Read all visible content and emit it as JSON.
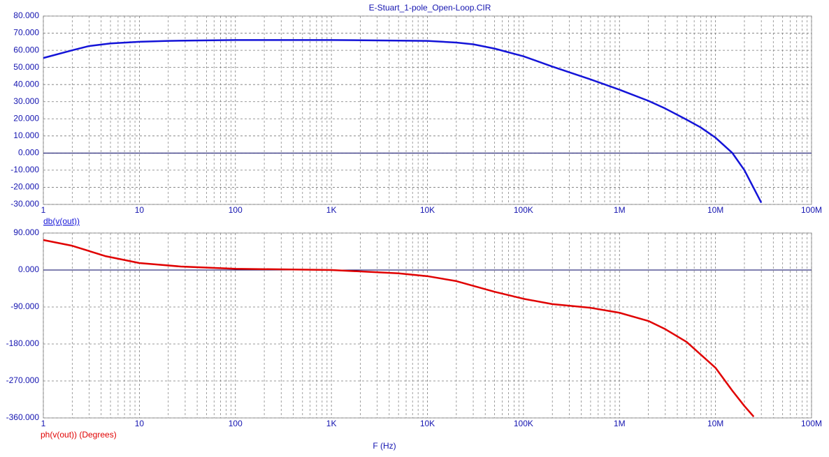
{
  "chart_data": [
    {
      "type": "line",
      "title": "E-Stuart_1-pole_Open-Loop.CIR",
      "log_x": true,
      "grid": true,
      "x": [
        1,
        2,
        3,
        5,
        10,
        20,
        100,
        1000,
        10000,
        20000,
        30000,
        50000,
        100000,
        200000,
        500000,
        1000000,
        2000000,
        3000000,
        5000000,
        7000000,
        10000000,
        15000000,
        20000000,
        30000000
      ],
      "xlim": [
        1,
        100000000
      ],
      "xticks": [
        1,
        10,
        100,
        {
          "value": 1000,
          "label": "1K"
        },
        {
          "value": 10000,
          "label": "10K"
        },
        {
          "value": 100000,
          "label": "100K"
        },
        {
          "value": 1000000,
          "label": "1M"
        },
        {
          "value": 10000000,
          "label": "10M"
        },
        {
          "value": 100000000,
          "label": "100M"
        }
      ],
      "ylim": [
        -30,
        80
      ],
      "yticks": [
        {
          "value": 80,
          "label": "80.000"
        },
        {
          "value": 70,
          "label": "70.000"
        },
        {
          "value": 60,
          "label": "60.000"
        },
        {
          "value": 50,
          "label": "50.000"
        },
        {
          "value": 40,
          "label": "40.000"
        },
        {
          "value": 30,
          "label": "30.000"
        },
        {
          "value": 20,
          "label": "20.000"
        },
        {
          "value": 10,
          "label": "10.000"
        },
        {
          "value": 0,
          "label": "0.000"
        },
        {
          "value": -10,
          "label": "-10.000"
        },
        {
          "value": -20,
          "label": "-20.000"
        },
        {
          "value": -30,
          "label": "-30.000"
        }
      ],
      "series": [
        {
          "name": "db(v(out))",
          "color": "#1414d8",
          "values": [
            55.5,
            60,
            62.5,
            64,
            65,
            65.5,
            66,
            66,
            65.5,
            64.5,
            63.5,
            61,
            56.5,
            50.5,
            43,
            37,
            30.5,
            26,
            19.5,
            15,
            9,
            0,
            -10,
            -29
          ]
        }
      ]
    },
    {
      "type": "line",
      "x_label": "F (Hz)",
      "log_x": true,
      "grid": true,
      "x": [
        1,
        2,
        4.4,
        10,
        27,
        100,
        1000,
        5000,
        10000,
        20000,
        50000,
        100000,
        200000,
        500000,
        1000000,
        2000000,
        3000000,
        5000000,
        10000000,
        15000000,
        20000000,
        25000000
      ],
      "xlim": [
        1,
        100000000
      ],
      "xticks": [
        1,
        10,
        100,
        {
          "value": 1000,
          "label": "1K"
        },
        {
          "value": 10000,
          "label": "10K"
        },
        {
          "value": 100000,
          "label": "100K"
        },
        {
          "value": 1000000,
          "label": "1M"
        },
        {
          "value": 10000000,
          "label": "10M"
        },
        {
          "value": 100000000,
          "label": "100M"
        }
      ],
      "ylim": [
        -360,
        90
      ],
      "yticks": [
        {
          "value": 90,
          "label": "90.000"
        },
        {
          "value": 0,
          "label": "0.000"
        },
        {
          "value": -90,
          "label": "-90.000"
        },
        {
          "value": -180,
          "label": "-180.000"
        },
        {
          "value": -270,
          "label": "-270.000"
        },
        {
          "value": -360,
          "label": "-360.000"
        }
      ],
      "series": [
        {
          "name": "ph(v(out)) (Degrees)",
          "color": "#e00000",
          "values": [
            73,
            59,
            34,
            17,
            8.5,
            3,
            0,
            -8,
            -15,
            -27,
            -53,
            -70,
            -83,
            -92,
            -104,
            -124,
            -144,
            -175,
            -238,
            -294,
            -331,
            -357
          ]
        }
      ]
    }
  ]
}
